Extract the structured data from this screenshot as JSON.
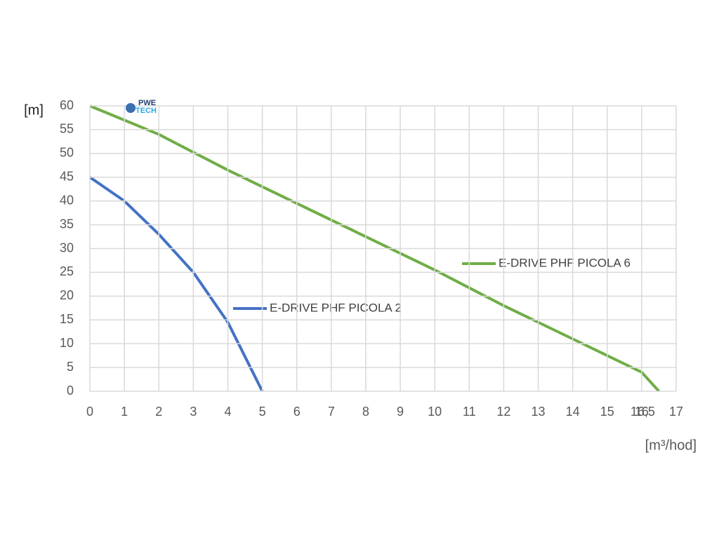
{
  "chart_data": {
    "type": "line",
    "y_label": "[m]",
    "x_label": "[m³/hod]",
    "logo": {
      "top": "PWE",
      "bottom": "TECH"
    },
    "xlim": [
      0,
      17
    ],
    "ylim": [
      0,
      60
    ],
    "xticks": [
      0,
      1,
      2,
      3,
      4,
      5,
      6,
      7,
      8,
      9,
      10,
      11,
      12,
      13,
      14,
      15,
      16,
      {
        "value": 16.5,
        "label": "16,5"
      },
      17
    ],
    "yticks": [
      0,
      5,
      10,
      15,
      20,
      25,
      30,
      35,
      40,
      45,
      50,
      55,
      60
    ],
    "grid": true,
    "series": [
      {
        "name": "E-DRIVE PHF PICOLA 2",
        "color": "#4472c4",
        "x": [
          0,
          1,
          2,
          3,
          4,
          5
        ],
        "values": [
          45,
          40,
          33,
          25,
          14.5,
          0
        ]
      },
      {
        "name": "E-DRIVE PHF PICOLA 6",
        "color": "#70ad47",
        "x": [
          0,
          2,
          4,
          6,
          8,
          10,
          12,
          14,
          16,
          16.5
        ],
        "values": [
          60,
          54,
          46.5,
          39.5,
          32.5,
          25.5,
          18,
          11,
          4,
          0
        ]
      }
    ]
  }
}
